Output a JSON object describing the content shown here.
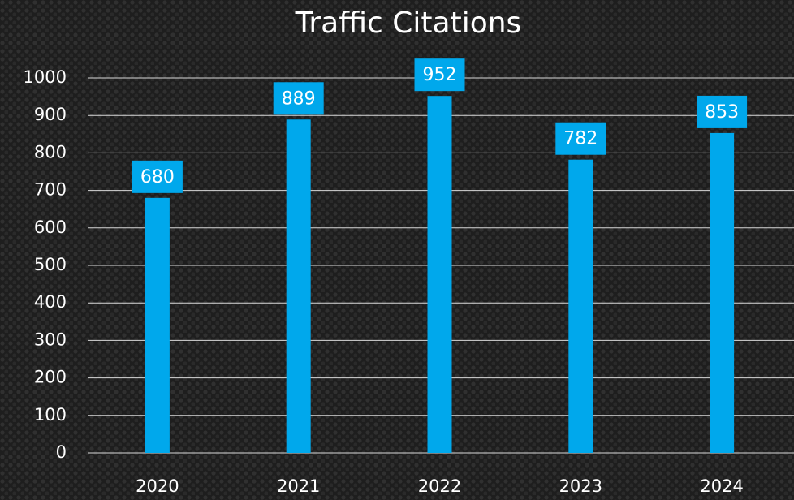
{
  "chart_data": {
    "type": "bar",
    "title": "Traffic Citations",
    "categories": [
      "2020",
      "2021",
      "2022",
      "2023",
      "2024"
    ],
    "values": [
      680,
      889,
      952,
      782,
      853
    ],
    "color": "#00a8ec",
    "ylim": [
      0,
      1000
    ],
    "yticks": [
      0,
      100,
      200,
      300,
      400,
      500,
      600,
      700,
      800,
      900,
      1000
    ],
    "grid": true
  }
}
